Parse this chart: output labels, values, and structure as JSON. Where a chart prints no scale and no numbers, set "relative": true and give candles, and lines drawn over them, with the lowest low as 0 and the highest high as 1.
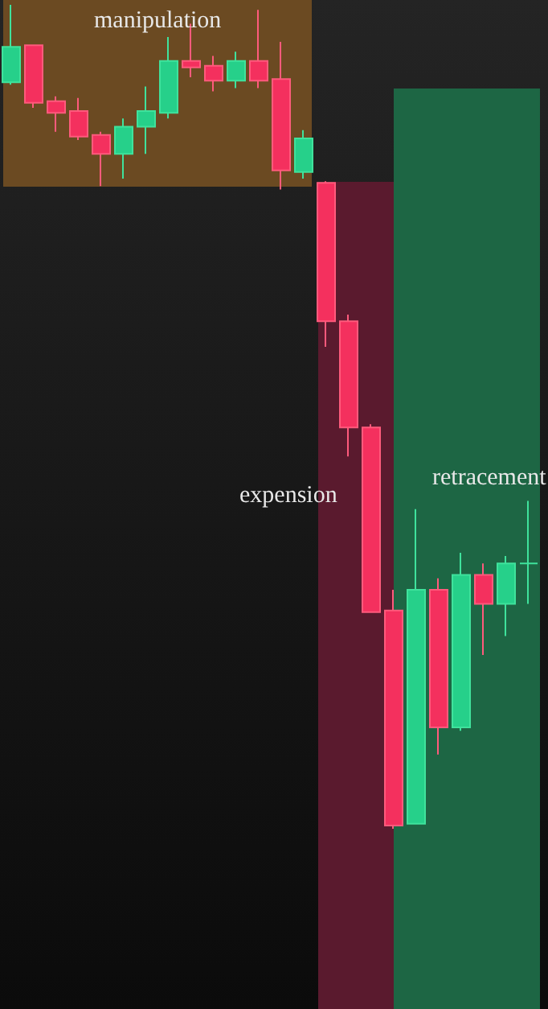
{
  "chart_data": {
    "type": "candlestick",
    "relative": true,
    "tick_labels": false,
    "categories": [
      null,
      null,
      null,
      null,
      null,
      null,
      null,
      null,
      null,
      null,
      null,
      null,
      null,
      null,
      null,
      null,
      null,
      null,
      null,
      null,
      null,
      null,
      null,
      null
    ],
    "ohlc": [
      [
        0.906,
        1,
        0.903,
        0.949
      ],
      [
        0.951,
        0.951,
        0.875,
        0.881
      ],
      [
        0.883,
        0.889,
        0.846,
        0.869
      ],
      [
        0.871,
        0.887,
        0.836,
        0.84
      ],
      [
        0.842,
        0.846,
        0.78,
        0.819
      ],
      [
        0.819,
        0.862,
        0.789,
        0.852
      ],
      [
        0.852,
        0.901,
        0.819,
        0.871
      ],
      [
        0.869,
        0.961,
        0.862,
        0.932
      ],
      [
        0.932,
        0.977,
        0.912,
        0.924
      ],
      [
        0.926,
        0.938,
        0.895,
        0.908
      ],
      [
        0.908,
        0.943,
        0.899,
        0.932
      ],
      [
        0.932,
        0.994,
        0.899,
        0.908
      ],
      [
        0.91,
        0.955,
        0.776,
        0.799
      ],
      [
        0.797,
        0.848,
        0.789,
        0.838
      ],
      [
        0.784,
        0.786,
        0.585,
        0.616
      ],
      [
        0.616,
        0.624,
        0.452,
        0.487
      ],
      [
        0.487,
        0.491,
        0.263,
        0.263
      ],
      [
        0.265,
        0.29,
        0,
        0.004
      ],
      [
        0.006,
        0.388,
        0.006,
        0.29
      ],
      [
        0.29,
        0.304,
        0.09,
        0.123
      ],
      [
        0.123,
        0.335,
        0.119,
        0.308
      ],
      [
        0.308,
        0.322,
        0.211,
        0.273
      ],
      [
        0.273,
        0.331,
        0.234,
        0.322
      ],
      [
        0.322,
        0.398,
        0.273,
        0.322
      ]
    ],
    "annotations": [
      "manipulation",
      "expension",
      "retracement"
    ]
  }
}
